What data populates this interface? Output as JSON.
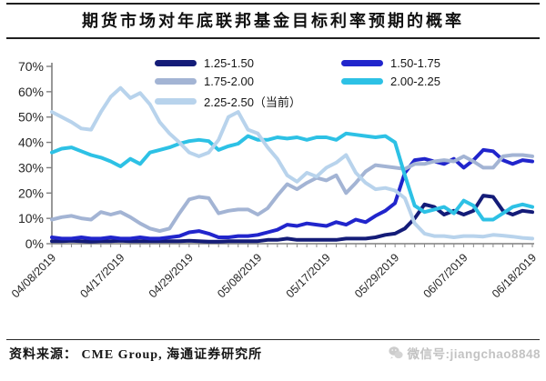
{
  "title": "期货市场对年底联邦基金目标利率预期的概率",
  "legend": [
    {
      "label": "1.25-1.50",
      "color": "#141c78"
    },
    {
      "label": "1.50-1.75",
      "color": "#2125cc"
    },
    {
      "label": "1.75-2.00",
      "color": "#a3b4d4"
    },
    {
      "label": "2.00-2.25",
      "color": "#2dc1e5"
    },
    {
      "label": "2.25-2.50（当前）",
      "color": "#b8d3ec"
    }
  ],
  "footer": {
    "source_text": "资料来源： CME Group, 海通证券研究所",
    "watermark_text": "微信号:jiangchao8848"
  },
  "chart_data": {
    "type": "line",
    "title": "期货市场对年底联邦基金目标利率预期的概率",
    "xlabel": "",
    "ylabel": "",
    "grid": false,
    "legend_position": "top-inside",
    "ylim": [
      0,
      70
    ],
    "ytick_labels": [
      "0%",
      "10%",
      "20%",
      "30%",
      "40%",
      "50%",
      "60%",
      "70%"
    ],
    "x_tick_labels": [
      "04/08/2019",
      "04/17/2019",
      "04/29/2019",
      "05/08/2019",
      "05/17/2019",
      "05/29/2019",
      "06/07/2019",
      "06/18/2019"
    ],
    "x_tick_indices": [
      0,
      7,
      14,
      21,
      28,
      35,
      42,
      49
    ],
    "n_points": 50,
    "unit": "percent probability",
    "series": [
      {
        "name": "1.25-1.50",
        "color": "#141c78",
        "values": [
          1,
          1,
          1.2,
          1,
          0.8,
          1,
          1,
          1.2,
          1,
          1,
          1,
          1,
          1,
          1,
          1.2,
          1,
          0.8,
          0.8,
          1,
          1,
          1,
          1,
          1.5,
          1.5,
          2,
          1.5,
          1.5,
          1.5,
          1.5,
          1.5,
          2,
          2,
          2,
          2.5,
          3.5,
          4,
          6,
          10,
          15.5,
          14.5,
          11.5,
          13,
          11.5,
          13,
          19,
          18.5,
          13,
          11.5,
          13,
          12.5
        ]
      },
      {
        "name": "1.50-1.75",
        "color": "#2125cc",
        "values": [
          2.5,
          2,
          2,
          2.5,
          2,
          2,
          2.5,
          2,
          2,
          2.5,
          2,
          2,
          2.5,
          3,
          4.5,
          5,
          4,
          2.5,
          2.5,
          3,
          3,
          3.5,
          4.5,
          5.5,
          7.5,
          7,
          8,
          7.5,
          7,
          8.5,
          7.5,
          9.5,
          8.5,
          11,
          13,
          16,
          28,
          33,
          33.5,
          32.5,
          31.5,
          33.5,
          30,
          33,
          37,
          36.5,
          33,
          31.5,
          33,
          32.5
        ]
      },
      {
        "name": "1.75-2.00",
        "color": "#a3b4d4",
        "values": [
          9.5,
          10.5,
          11,
          10,
          9.5,
          12.5,
          11.5,
          12.5,
          10.5,
          8,
          6,
          5,
          6,
          12,
          17.5,
          18.5,
          18,
          12,
          13,
          13.5,
          13.5,
          11.5,
          14,
          19,
          23.5,
          21.5,
          24,
          26,
          25,
          27,
          20,
          24,
          28.5,
          31,
          30.5,
          30,
          29.5,
          31.5,
          31.5,
          32.5,
          33,
          32.5,
          34.5,
          32.5,
          30,
          30,
          34.5,
          35,
          35,
          34.5
        ]
      },
      {
        "name": "2.00-2.25",
        "color": "#2dc1e5",
        "values": [
          36,
          37.5,
          38,
          36.5,
          35,
          34,
          32.5,
          30.5,
          33.5,
          31.5,
          36,
          37,
          38,
          39.5,
          40.5,
          41,
          40.5,
          37,
          38.5,
          39.5,
          42.5,
          41,
          41,
          42,
          41.5,
          42,
          41,
          42,
          42,
          41,
          43.5,
          43,
          42.5,
          42,
          42.5,
          40,
          27,
          15,
          12.5,
          13.5,
          14.5,
          12,
          17,
          15,
          9.5,
          9.5,
          12,
          14.5,
          15.5,
          14.5
        ]
      },
      {
        "name": "2.25-2.50（当前）",
        "color": "#b8d3ec",
        "values": [
          52,
          50,
          48,
          45.5,
          45,
          52,
          58,
          61.5,
          57.5,
          59.5,
          55,
          48,
          43.5,
          40,
          36,
          34.5,
          36,
          41,
          50,
          52,
          45,
          43.5,
          38,
          33.5,
          27,
          24.5,
          28,
          26.5,
          30,
          32,
          35,
          28,
          24,
          21.5,
          22,
          21,
          18,
          8,
          4,
          3,
          3,
          2.5,
          3,
          3,
          2.8,
          3.5,
          3.2,
          2.8,
          2.3,
          2
        ]
      }
    ]
  }
}
